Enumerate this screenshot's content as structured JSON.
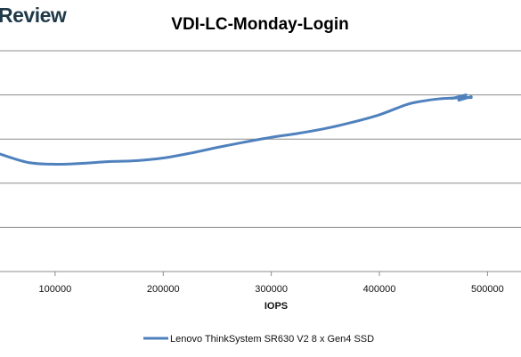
{
  "brand": {
    "text": "Review"
  },
  "chart_data": {
    "type": "line",
    "title": "VDI-LC-Monday-Login",
    "xlabel": "IOPS",
    "ylabel": "",
    "x_ticks": [
      100000,
      200000,
      300000,
      400000,
      500000
    ],
    "x_tick_labels": [
      "100000",
      "200000",
      "300000",
      "400000",
      "500000"
    ],
    "xlim": [
      49000,
      531000
    ],
    "ylim": [
      0,
      5
    ],
    "grid": true,
    "legend_position": "bottom",
    "series": [
      {
        "name": "Lenovo ThinkSystem SR630 V2 8 x Gen4 SSD",
        "color": "#4f81bd",
        "x": [
          49000,
          75000,
          100000,
          125000,
          150000,
          175000,
          200000,
          225000,
          250000,
          275000,
          300000,
          325000,
          350000,
          375000,
          400000,
          425000,
          440000,
          455000,
          470000,
          478000,
          485000
        ],
        "y": [
          2.66,
          2.47,
          2.43,
          2.45,
          2.49,
          2.51,
          2.57,
          2.68,
          2.81,
          2.93,
          3.04,
          3.13,
          3.24,
          3.38,
          3.55,
          3.78,
          3.86,
          3.91,
          3.93,
          3.94,
          3.94
        ]
      }
    ]
  }
}
